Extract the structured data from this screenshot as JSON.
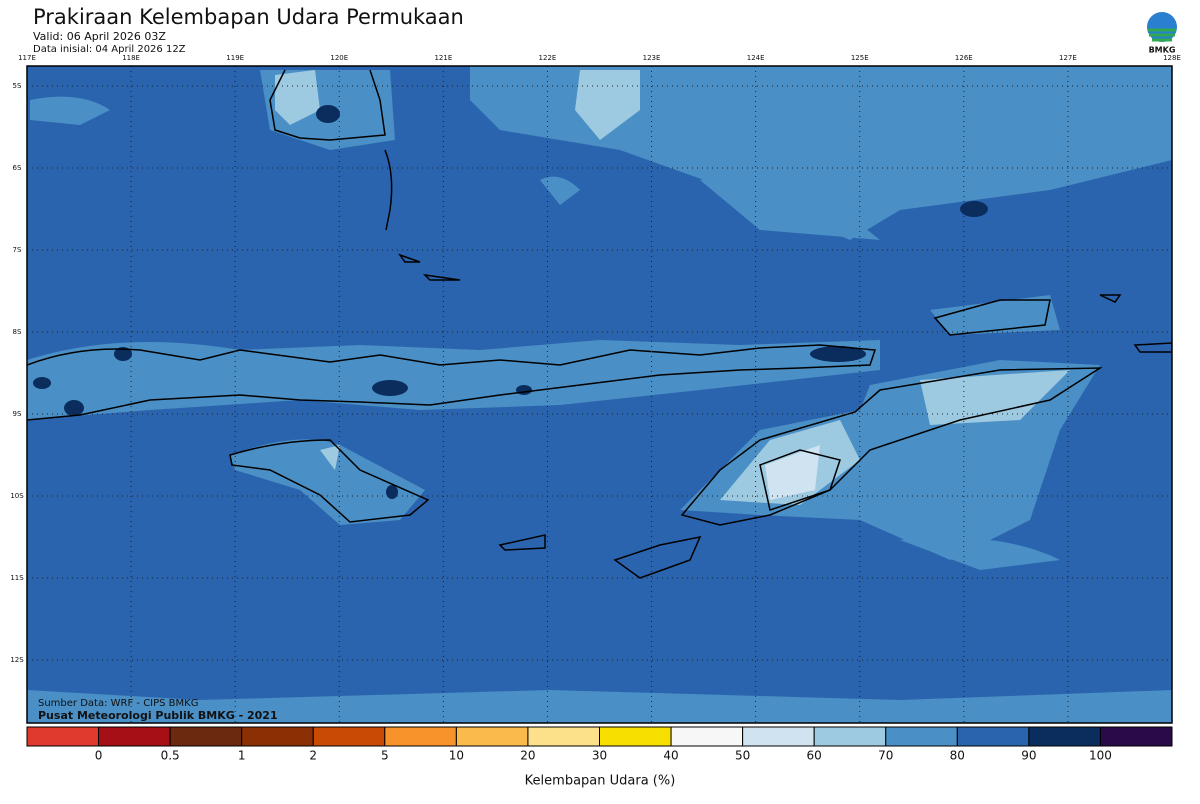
{
  "header": {
    "title": "Prakiraan Kelembapan Udara Permukaan",
    "valid": "Valid: 06 April 2026 03Z",
    "initial": "Data inisial: 04 April 2026 12Z",
    "logo": "BMKG"
  },
  "map": {
    "longitudes": [
      "117E",
      "118E",
      "119E",
      "120E",
      "121E",
      "122E",
      "123E",
      "124E",
      "125E",
      "126E",
      "127E",
      "128E"
    ],
    "latitudes": [
      "5S",
      "6S",
      "7S",
      "8S",
      "9S",
      "10S",
      "11S",
      "12S"
    ],
    "source": "Sumber Data: WRF - CIPS BMKG",
    "credit": "Pusat Meteorologi Publik BMKG - 2021"
  },
  "legend": {
    "colors": [
      "#e03a2e",
      "#a50f15",
      "#6b2a10",
      "#8b3005",
      "#c84a05",
      "#f7932a",
      "#fbbb4c",
      "#fde08a",
      "#f7e000",
      "#f7f7f7",
      "#cfe3f0",
      "#9ecae1",
      "#4a8fc5",
      "#2b64ae",
      "#0a2d5e",
      "#2a0a48"
    ],
    "labels": [
      "0",
      "0.5",
      "1",
      "2",
      "5",
      "10",
      "20",
      "30",
      "40",
      "50",
      "60",
      "70",
      "80",
      "90",
      "100"
    ],
    "title": "Kelembapan Udara (%)"
  }
}
